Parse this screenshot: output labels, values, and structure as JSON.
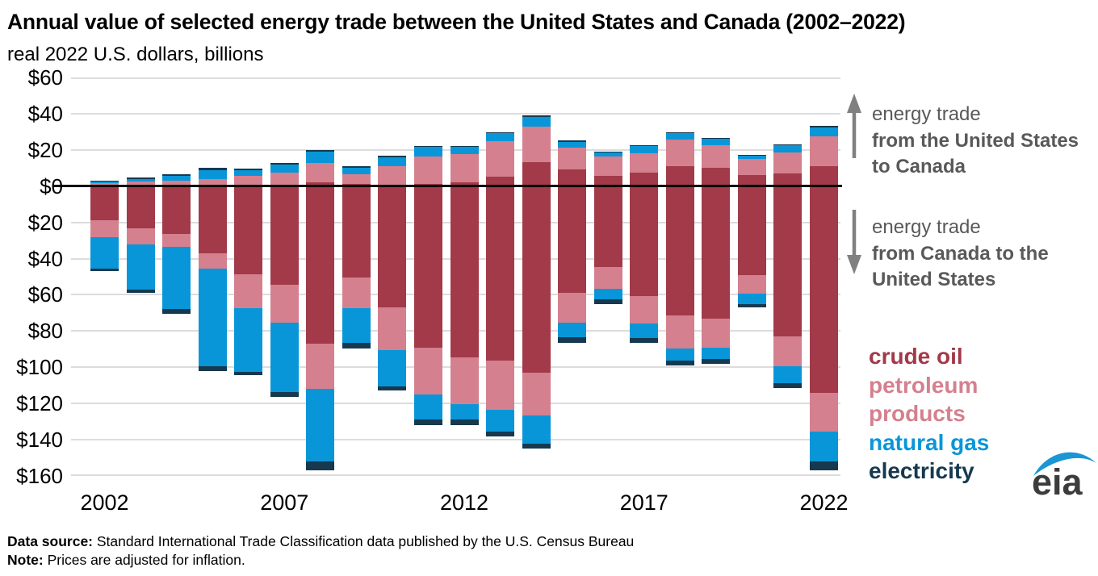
{
  "title": "Annual value of selected energy trade between the United States and Canada (2002–2022)",
  "subtitle": "real 2022 U.S. dollars, billions",
  "annotations": {
    "up": {
      "line1": "energy trade",
      "line2": "from the United States to Canada"
    },
    "down": {
      "line1": "energy trade",
      "line2": "from Canada to the United States"
    }
  },
  "legend": {
    "items": [
      {
        "label": "crude oil",
        "color": "#a23a49"
      },
      {
        "label": "petroleum products",
        "color": "#d4808f"
      },
      {
        "label": "natural gas",
        "color": "#0996d8"
      },
      {
        "label": "electricity",
        "color": "#16394f"
      }
    ]
  },
  "logo_text": "eia",
  "footer": {
    "source_label": "Data source:",
    "source_text": " Standard International Trade Classification data published by the U.S. Census Bureau",
    "note_label": "Note:",
    "note_text": " Prices are adjusted for inflation."
  },
  "colors": {
    "gridline": "#dcdcdc",
    "zero_line": "#000000",
    "annotation_text": "#595959",
    "arrow": "#808080"
  },
  "chart_data": {
    "type": "bar",
    "stacked": true,
    "diverging": true,
    "title": "Annual value of selected energy trade between the United States and Canada (2002–2022)",
    "ylabel": "real 2022 U.S. dollars, billions",
    "ylim": [
      -160,
      60
    ],
    "grid": true,
    "years": [
      2002,
      2003,
      2004,
      2005,
      2006,
      2007,
      2008,
      2009,
      2010,
      2011,
      2012,
      2013,
      2014,
      2015,
      2016,
      2017,
      2018,
      2019,
      2020,
      2021,
      2022
    ],
    "x_ticks": [
      {
        "label": "2002",
        "index": 0
      },
      {
        "label": "2007",
        "index": 5
      },
      {
        "label": "2012",
        "index": 10
      },
      {
        "label": "2017",
        "index": 15
      },
      {
        "label": "2022",
        "index": 20
      }
    ],
    "y_ticks": [
      {
        "label": "$60",
        "value": 60
      },
      {
        "label": "$40",
        "value": 40
      },
      {
        "label": "$20",
        "value": 20
      },
      {
        "label": "$0",
        "value": 0
      },
      {
        "label": "$20",
        "value": -20
      },
      {
        "label": "$40",
        "value": -40
      },
      {
        "label": "$60",
        "value": -60
      },
      {
        "label": "$80",
        "value": -80
      },
      {
        "label": "$100",
        "value": -100
      },
      {
        "label": "$120",
        "value": -120
      },
      {
        "label": "$140",
        "value": -140
      },
      {
        "label": "$160",
        "value": -160
      }
    ],
    "series_up": [
      {
        "name": "crude oil",
        "color": "#a23a49",
        "values": [
          0.3,
          0.6,
          0.8,
          0.9,
          0.6,
          0.7,
          1.9,
          1.0,
          0.9,
          1.0,
          1.9,
          5.2,
          13.2,
          9.3,
          5.7,
          7.5,
          10.8,
          10.2,
          6.3,
          7.2,
          10.8
        ]
      },
      {
        "name": "petroleum products",
        "color": "#d4808f",
        "values": [
          1.2,
          1.9,
          2.2,
          3.1,
          5.1,
          6.7,
          10.8,
          5.7,
          9.9,
          15.4,
          15.7,
          19.4,
          19.7,
          12.0,
          10.5,
          10.8,
          14.9,
          12.6,
          8.7,
          11.5,
          16.9
        ]
      },
      {
        "name": "natural gas",
        "color": "#0996d8",
        "values": [
          1.0,
          1.2,
          2.5,
          4.9,
          3.0,
          4.5,
          6.4,
          3.4,
          5.2,
          5.2,
          3.9,
          4.5,
          5.2,
          3.1,
          2.4,
          3.9,
          3.4,
          3.4,
          1.9,
          3.7,
          4.8
        ]
      },
      {
        "name": "electricity",
        "color": "#16394f",
        "values": [
          0.5,
          1.0,
          0.9,
          1.2,
          1.0,
          1.0,
          1.0,
          0.9,
          0.7,
          0.7,
          0.6,
          0.8,
          1.0,
          0.7,
          0.6,
          0.5,
          0.6,
          0.5,
          0.4,
          0.8,
          0.7
        ]
      }
    ],
    "series_down": [
      {
        "name": "crude oil",
        "color": "#a23a49",
        "values": [
          19,
          23.5,
          26.5,
          37,
          48.5,
          54.5,
          87,
          50.5,
          67,
          89,
          94.5,
          96.5,
          103,
          59,
          44.5,
          60.5,
          71.5,
          73,
          49,
          83,
          114
        ]
      },
      {
        "name": "petroleum products",
        "color": "#d4808f",
        "values": [
          9,
          8.5,
          7,
          8.5,
          19,
          21,
          25,
          17,
          23.5,
          26,
          26,
          27,
          23.5,
          16.5,
          12,
          15.5,
          18,
          16,
          10.5,
          16.5,
          21.5
        ]
      },
      {
        "name": "natural gas",
        "color": "#0996d8",
        "values": [
          17.5,
          25,
          34.5,
          54,
          35,
          38,
          40,
          19,
          20,
          14,
          8.5,
          12,
          15.5,
          8,
          6,
          8,
          7,
          6.5,
          5.5,
          9.5,
          16.5
        ]
      },
      {
        "name": "electricity",
        "color": "#16394f",
        "values": [
          1.5,
          2,
          2.5,
          2.5,
          2,
          3,
          5,
          3,
          2.5,
          3,
          3,
          2.5,
          3,
          3,
          2.5,
          2.5,
          2.5,
          2.5,
          2,
          2.5,
          5
        ]
      }
    ]
  }
}
